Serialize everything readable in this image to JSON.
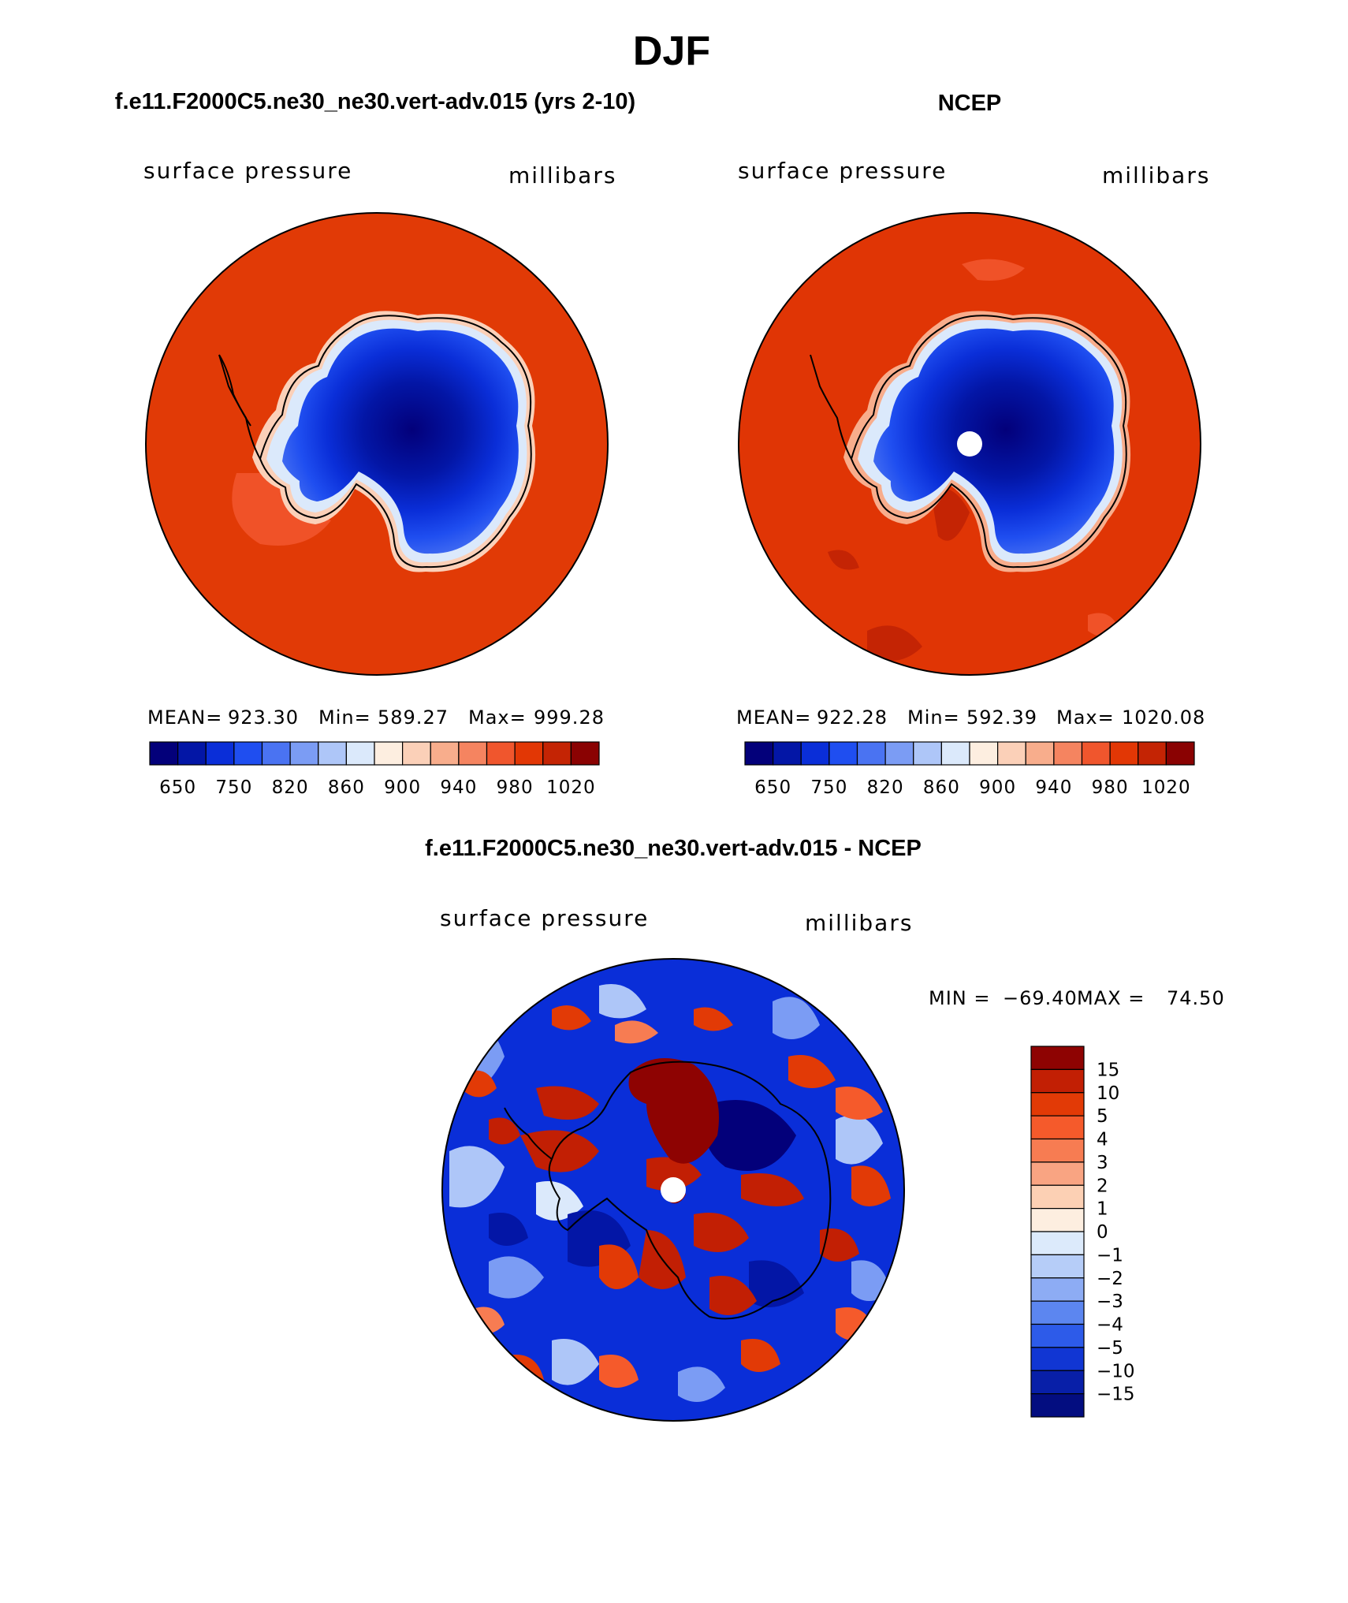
{
  "title": "DJF",
  "colors": {
    "ocean_model": "#e13a06",
    "ocean_obs": "#e03505",
    "coast": "#000000"
  },
  "panels": {
    "model": {
      "title": "f.e11.F2000C5.ne30_ne30.vert-adv.015 (yrs 2-10)",
      "field": "surface pressure",
      "units": "millibars",
      "stats": {
        "mean_label": "MEAN=",
        "mean": "923.30",
        "min_label": "Min=",
        "min": "589.27",
        "max_label": "Max=",
        "max": "999.28"
      }
    },
    "obs": {
      "title": "NCEP",
      "field": "surface pressure",
      "units": "millibars",
      "stats": {
        "mean_label": "MEAN=",
        "mean": "922.28",
        "min_label": "Min=",
        "min": "592.39",
        "max_label": "Max=",
        "max": "1020.08"
      }
    },
    "diff": {
      "title": "f.e11.F2000C5.ne30_ne30.vert-adv.015 - NCEP",
      "field": "surface pressure",
      "units": "millibars",
      "stats": {
        "min_label": "MIN =",
        "min": "−69.40",
        "max_label": "MAX =",
        "max": "74.50"
      }
    }
  },
  "abs_colorbar": {
    "colors": [
      "#03007a",
      "#0316a6",
      "#0a2ed8",
      "#1f4ef0",
      "#4a73f2",
      "#7b9cf4",
      "#aec6f8",
      "#dbe9fb",
      "#fdeee0",
      "#fbd0b8",
      "#f8ad8c",
      "#f58460",
      "#f0562d",
      "#e23705",
      "#c42404",
      "#8a0202"
    ],
    "labels": [
      "650",
      "750",
      "820",
      "860",
      "900",
      "940",
      "980",
      "1020"
    ]
  },
  "diff_colorbar": {
    "colors_top_to_bottom": [
      "#8e0302",
      "#c21f04",
      "#e23a06",
      "#f55a2b",
      "#f77c52",
      "#f9a482",
      "#fcd0b4",
      "#fdeee0",
      "#dceafb",
      "#b6cdf8",
      "#8dacf4",
      "#5c86f0",
      "#2d5be9",
      "#1136d3",
      "#081fa8",
      "#030d80"
    ],
    "labels": [
      "15",
      "10",
      "5",
      "4",
      "3",
      "2",
      "1",
      "0",
      "−1",
      "−2",
      "−3",
      "−4",
      "−5",
      "−10",
      "−15"
    ]
  }
}
